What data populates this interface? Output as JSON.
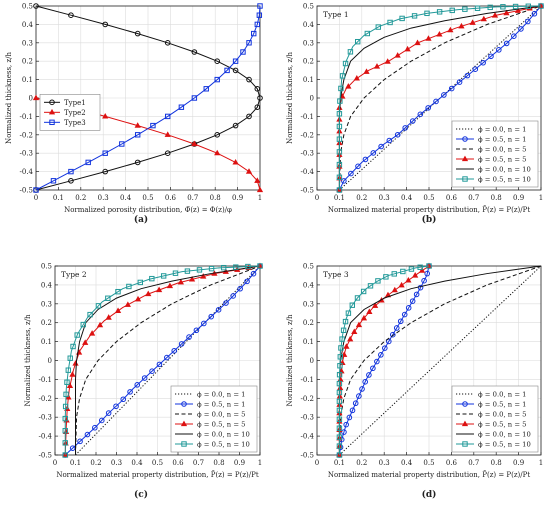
{
  "figure": {
    "ylabel": "Normalized thickness, z/h",
    "panel_labels": [
      "(a)",
      "(b)",
      "(c)",
      "(d)"
    ]
  },
  "chart_data": [
    {
      "panel": "a",
      "type": "line",
      "xlabel": "Normalized porosity distribution, Φ̄(z) = Φ(z)/φ",
      "ylabel": "Normalized thickness, z/h",
      "xlim": [
        0,
        1
      ],
      "ylim": [
        -0.5,
        0.5
      ],
      "xticks": [
        "0",
        "0.1",
        "0.2",
        "0.3",
        "0.4",
        "0.5",
        "0.6",
        "0.7",
        "0.8",
        "0.9",
        "1"
      ],
      "yticks": [
        "-0.5",
        "-0.4",
        "-0.3",
        "-0.2",
        "-0.1",
        "0",
        "0.1",
        "0.2",
        "0.3",
        "0.4",
        "0.5"
      ],
      "legend_position": "middle-left",
      "series": [
        {
          "name": "Type1",
          "color": "#111111",
          "marker": "circle",
          "x": [
            0,
            0.156,
            0.309,
            0.454,
            0.588,
            0.707,
            0.809,
            0.891,
            0.951,
            0.988,
            1,
            0.988,
            0.951,
            0.891,
            0.809,
            0.707,
            0.588,
            0.454,
            0.309,
            0.156,
            0
          ],
          "y": [
            -0.5,
            -0.45,
            -0.4,
            -0.35,
            -0.3,
            -0.25,
            -0.2,
            -0.15,
            -0.1,
            -0.05,
            0,
            0.05,
            0.1,
            0.15,
            0.2,
            0.25,
            0.3,
            0.35,
            0.4,
            0.45,
            0.5
          ]
        },
        {
          "name": "Type2",
          "color": "#dd1111",
          "marker": "triangle",
          "x": [
            1,
            0.988,
            0.951,
            0.891,
            0.809,
            0.707,
            0.588,
            0.454,
            0.309,
            0.156,
            0
          ],
          "y": [
            -0.5,
            -0.45,
            -0.4,
            -0.35,
            -0.3,
            -0.25,
            -0.2,
            -0.15,
            -0.1,
            -0.05,
            0
          ]
        },
        {
          "name": "Type3",
          "color": "#1133dd",
          "marker": "square",
          "x": [
            0,
            0.078,
            0.156,
            0.233,
            0.309,
            0.383,
            0.454,
            0.522,
            0.588,
            0.649,
            0.707,
            0.76,
            0.809,
            0.853,
            0.891,
            0.924,
            0.951,
            0.972,
            0.988,
            0.997,
            1
          ],
          "y": [
            -0.5,
            -0.45,
            -0.4,
            -0.35,
            -0.3,
            -0.25,
            -0.2,
            -0.15,
            -0.1,
            -0.05,
            0,
            0.05,
            0.1,
            0.15,
            0.2,
            0.25,
            0.3,
            0.35,
            0.4,
            0.45,
            0.5
          ]
        }
      ]
    },
    {
      "panel": "b",
      "type": "line",
      "title": "Type 1",
      "xlabel": "Normalized material property distribution, P̄(z) = P(z)/Pt",
      "ylabel": "Normalized thickness, z/h",
      "xlim": [
        0,
        1
      ],
      "ylim": [
        -0.5,
        0.5
      ],
      "xticks": [
        "0",
        "0.1",
        "0.2",
        "0.3",
        "0.4",
        "0.5",
        "0.6",
        "0.7",
        "0.8",
        "0.9",
        "1"
      ],
      "yticks": [
        "-0.5",
        "-0.4",
        "-0.3",
        "-0.2",
        "-0.1",
        "0",
        "0.1",
        "0.2",
        "0.3",
        "0.4",
        "0.5"
      ],
      "legend_position": "bottom-right",
      "series": [
        {
          "name": "ϕ = 0.0, n = 1",
          "color": "#111111",
          "style": "dotted",
          "marker": "none",
          "x": [
            0.1,
            0.55,
            1
          ],
          "y": [
            -0.5,
            0,
            0.5
          ]
        },
        {
          "name": "ϕ = 0.5, n = 1",
          "color": "#1133dd",
          "style": "solid",
          "marker": "circle",
          "x": [
            0.1,
            0.12,
            0.16,
            0.2,
            0.25,
            0.3,
            0.36,
            0.45,
            0.55,
            0.65,
            0.75,
            0.85,
            0.93,
            1
          ],
          "y": [
            -0.5,
            -0.45,
            -0.4,
            -0.35,
            -0.3,
            -0.25,
            -0.2,
            -0.1,
            0,
            0.1,
            0.2,
            0.3,
            0.4,
            0.5
          ]
        },
        {
          "name": "ϕ = 0.0, n = 5",
          "color": "#111111",
          "style": "dashed",
          "marker": "none",
          "x": [
            0.1,
            0.105,
            0.12,
            0.15,
            0.21,
            0.3,
            0.42,
            0.57,
            0.76,
            1
          ],
          "y": [
            -0.5,
            -0.3,
            -0.2,
            -0.1,
            0,
            0.1,
            0.2,
            0.3,
            0.4,
            0.5
          ]
        },
        {
          "name": "ϕ = 0.5, n = 5",
          "color": "#dd1111",
          "style": "solid",
          "marker": "triangle",
          "x": [
            0.1,
            0.1,
            0.1,
            0.1,
            0.11,
            0.13,
            0.17,
            0.23,
            0.32,
            0.45,
            0.62,
            0.8,
            1
          ],
          "y": [
            -0.5,
            -0.3,
            -0.15,
            -0.05,
            0,
            0.05,
            0.1,
            0.15,
            0.2,
            0.3,
            0.38,
            0.45,
            0.5
          ]
        },
        {
          "name": "ϕ = 0.0, n = 10",
          "color": "#111111",
          "style": "solid",
          "marker": "none",
          "x": [
            0.1,
            0.1,
            0.105,
            0.12,
            0.15,
            0.21,
            0.3,
            0.42,
            0.57,
            0.76,
            1
          ],
          "y": [
            -0.5,
            -0.1,
            0,
            0.1,
            0.2,
            0.27,
            0.33,
            0.38,
            0.42,
            0.46,
            0.5
          ]
        },
        {
          "name": "ϕ = 0.5, n = 10",
          "color": "#229999",
          "style": "solid",
          "marker": "square",
          "x": [
            0.1,
            0.1,
            0.11,
            0.13,
            0.16,
            0.21,
            0.28,
            0.37,
            0.49,
            0.63,
            0.8,
            1
          ],
          "y": [
            -0.5,
            -0.05,
            0.1,
            0.2,
            0.28,
            0.34,
            0.39,
            0.43,
            0.46,
            0.48,
            0.495,
            0.5
          ]
        }
      ]
    },
    {
      "panel": "c",
      "type": "line",
      "title": "Type 2",
      "xlabel": "Normalized material property distribution, P̄(z) = P(z)/Pt",
      "ylabel": "Normalized thickness, z/h",
      "xlim": [
        0,
        1
      ],
      "ylim": [
        -0.5,
        0.5
      ],
      "xticks": [
        "0",
        "0.1",
        "0.2",
        "0.3",
        "0.4",
        "0.5",
        "0.6",
        "0.7",
        "0.8",
        "0.9",
        "1"
      ],
      "yticks": [
        "-0.5",
        "-0.4",
        "-0.3",
        "-0.2",
        "-0.1",
        "0",
        "0.1",
        "0.2",
        "0.3",
        "0.4",
        "0.5"
      ],
      "legend_position": "bottom-right",
      "series": [
        {
          "name": "ϕ = 0.0, n = 1",
          "color": "#111111",
          "style": "dotted",
          "marker": "none",
          "x": [
            0.1,
            0.55,
            1
          ],
          "y": [
            -0.5,
            0,
            0.5
          ]
        },
        {
          "name": "ϕ = 0.5, n = 1",
          "color": "#1133dd",
          "style": "solid",
          "marker": "circle",
          "x": [
            0.05,
            0.1,
            0.15,
            0.2,
            0.26,
            0.32,
            0.38,
            0.45,
            0.53,
            0.61,
            0.69,
            0.77,
            0.85,
            0.93,
            1
          ],
          "y": [
            -0.5,
            -0.45,
            -0.4,
            -0.35,
            -0.28,
            -0.22,
            -0.15,
            -0.08,
            0,
            0.08,
            0.16,
            0.24,
            0.32,
            0.41,
            0.5
          ]
        },
        {
          "name": "ϕ = 0.0, n = 5",
          "color": "#111111",
          "style": "dashed",
          "marker": "none",
          "x": [
            0.1,
            0.105,
            0.12,
            0.15,
            0.21,
            0.3,
            0.42,
            0.57,
            0.76,
            1
          ],
          "y": [
            -0.5,
            -0.3,
            -0.2,
            -0.1,
            0,
            0.1,
            0.2,
            0.3,
            0.4,
            0.5
          ]
        },
        {
          "name": "ϕ = 0.5, n = 5",
          "color": "#dd1111",
          "style": "solid",
          "marker": "triangle",
          "x": [
            0.05,
            0.055,
            0.06,
            0.07,
            0.09,
            0.12,
            0.17,
            0.24,
            0.33,
            0.45,
            0.6,
            0.78,
            1
          ],
          "y": [
            -0.5,
            -0.35,
            -0.25,
            -0.15,
            -0.05,
            0.05,
            0.13,
            0.21,
            0.28,
            0.35,
            0.41,
            0.46,
            0.5
          ]
        },
        {
          "name": "ϕ = 0.0, n = 10",
          "color": "#111111",
          "style": "solid",
          "marker": "none",
          "x": [
            0.1,
            0.1,
            0.105,
            0.12,
            0.15,
            0.21,
            0.3,
            0.42,
            0.57,
            0.76,
            1
          ],
          "y": [
            -0.5,
            -0.1,
            0,
            0.1,
            0.2,
            0.27,
            0.33,
            0.38,
            0.42,
            0.46,
            0.5
          ]
        },
        {
          "name": "ϕ = 0.5, n = 10",
          "color": "#229999",
          "style": "solid",
          "marker": "square",
          "x": [
            0.05,
            0.05,
            0.055,
            0.065,
            0.08,
            0.11,
            0.16,
            0.23,
            0.33,
            0.46,
            0.62,
            0.8,
            1
          ],
          "y": [
            -0.5,
            -0.3,
            -0.15,
            -0.05,
            0.05,
            0.14,
            0.23,
            0.31,
            0.38,
            0.43,
            0.47,
            0.49,
            0.5
          ]
        }
      ]
    },
    {
      "panel": "d",
      "type": "line",
      "title": "Type 3",
      "xlabel": "Normalized material property distribution, P̄(z) = P(z)/Pt",
      "ylabel": "Normalized thickness, z/h",
      "xlim": [
        0,
        1
      ],
      "ylim": [
        -0.5,
        0.5
      ],
      "xticks": [
        "0",
        "0.1",
        "0.2",
        "0.3",
        "0.4",
        "0.5",
        "0.6",
        "0.7",
        "0.8",
        "0.9",
        "1"
      ],
      "yticks": [
        "-0.5",
        "-0.4",
        "-0.3",
        "-0.2",
        "-0.1",
        "0",
        "0.1",
        "0.2",
        "0.3",
        "0.4",
        "0.5"
      ],
      "legend_position": "bottom-right",
      "series": [
        {
          "name": "ϕ = 0.0, n = 1",
          "color": "#111111",
          "style": "dotted",
          "marker": "none",
          "x": [
            0.1,
            0.55,
            1
          ],
          "y": [
            -0.5,
            0,
            0.5
          ]
        },
        {
          "name": "ϕ = 0.5, n = 1",
          "color": "#1133dd",
          "style": "solid",
          "marker": "circle",
          "x": [
            0.1,
            0.11,
            0.13,
            0.16,
            0.19,
            0.22,
            0.26,
            0.3,
            0.34,
            0.38,
            0.42,
            0.46,
            0.49,
            0.5
          ],
          "y": [
            -0.5,
            -0.42,
            -0.34,
            -0.26,
            -0.18,
            -0.1,
            -0.02,
            0.06,
            0.14,
            0.22,
            0.3,
            0.38,
            0.45,
            0.5
          ]
        },
        {
          "name": "ϕ = 0.0, n = 5",
          "color": "#111111",
          "style": "dashed",
          "marker": "none",
          "x": [
            0.1,
            0.105,
            0.12,
            0.15,
            0.21,
            0.3,
            0.42,
            0.57,
            0.76,
            1
          ],
          "y": [
            -0.5,
            -0.3,
            -0.2,
            -0.1,
            0,
            0.1,
            0.2,
            0.3,
            0.4,
            0.5
          ]
        },
        {
          "name": "ϕ = 0.5, n = 5",
          "color": "#dd1111",
          "style": "solid",
          "marker": "triangle",
          "x": [
            0.1,
            0.1,
            0.105,
            0.115,
            0.13,
            0.16,
            0.2,
            0.25,
            0.31,
            0.38,
            0.45,
            0.5
          ],
          "y": [
            -0.5,
            -0.25,
            -0.1,
            0,
            0.07,
            0.14,
            0.21,
            0.28,
            0.34,
            0.4,
            0.46,
            0.5
          ]
        },
        {
          "name": "ϕ = 0.0, n = 10",
          "color": "#111111",
          "style": "solid",
          "marker": "none",
          "x": [
            0.1,
            0.1,
            0.105,
            0.12,
            0.15,
            0.21,
            0.3,
            0.42,
            0.57,
            0.76,
            1
          ],
          "y": [
            -0.5,
            -0.1,
            0,
            0.1,
            0.2,
            0.27,
            0.33,
            0.38,
            0.42,
            0.46,
            0.5
          ]
        },
        {
          "name": "ϕ = 0.5, n = 10",
          "color": "#229999",
          "style": "solid",
          "marker": "square",
          "x": [
            0.1,
            0.1,
            0.105,
            0.115,
            0.13,
            0.15,
            0.18,
            0.22,
            0.27,
            0.32,
            0.38,
            0.44,
            0.5
          ],
          "y": [
            -0.5,
            -0.1,
            0.05,
            0.14,
            0.22,
            0.28,
            0.33,
            0.38,
            0.42,
            0.45,
            0.47,
            0.49,
            0.5
          ]
        }
      ]
    }
  ]
}
